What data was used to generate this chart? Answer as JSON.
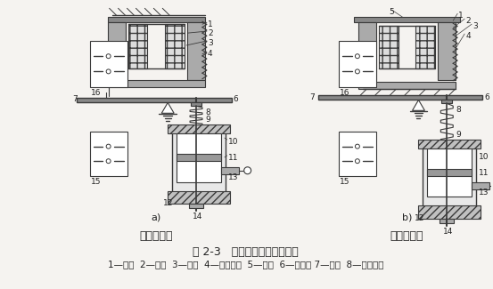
{
  "title_line1": "图 2-3   空气阻尼式时间继电器",
  "title_line2": "1—线圈  2—铁心  3—衔铁  4—反力弹簧  5—推板  6—活塞杆 7—杠杆  8—塔形弹簧",
  "left_label": "通电延时型",
  "right_label": "断电延时型",
  "sublabel_a": "a)",
  "sublabel_b": "b)",
  "bg_color": "#f5f3f0",
  "line_color": "#3a3a3a",
  "text_color": "#222222",
  "fig_width": 5.53,
  "fig_height": 3.25,
  "dpi": 100
}
